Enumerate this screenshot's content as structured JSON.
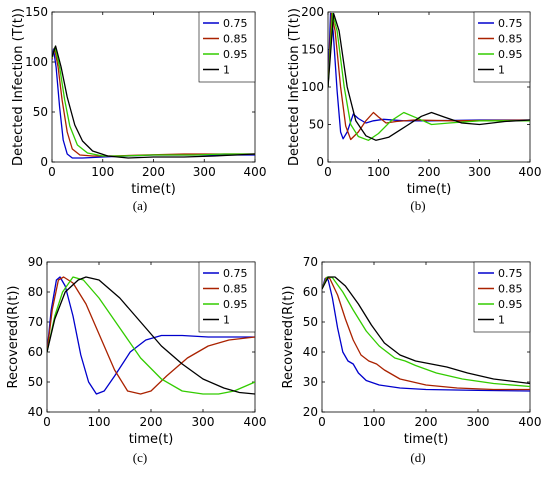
{
  "chart_data": [
    {
      "panel": "(a)",
      "type": "line",
      "xlabel": "time(t)",
      "ylabel": "Detected Infection (T(t))",
      "xlim": [
        0,
        400
      ],
      "ylim": [
        0,
        150
      ],
      "xticks": [
        0,
        100,
        200,
        300,
        400
      ],
      "yticks": [
        0,
        50,
        100,
        150
      ],
      "legend_position": "top-right",
      "series": [
        {
          "name": "0.75",
          "color": "#0000cc",
          "points": [
            [
              0,
              102
            ],
            [
              3,
              113
            ],
            [
              8,
              95
            ],
            [
              15,
              55
            ],
            [
              22,
              22
            ],
            [
              30,
              8
            ],
            [
              40,
              4
            ],
            [
              60,
              4
            ],
            [
              100,
              5
            ],
            [
              150,
              6
            ],
            [
              200,
              7
            ],
            [
              260,
              7
            ],
            [
              330,
              7
            ],
            [
              400,
              7
            ]
          ]
        },
        {
          "name": "0.85",
          "color": "#aa2200",
          "points": [
            [
              0,
              103
            ],
            [
              5,
              114
            ],
            [
              12,
              95
            ],
            [
              20,
              62
            ],
            [
              30,
              30
            ],
            [
              40,
              13
            ],
            [
              55,
              7
            ],
            [
              80,
              6
            ],
            [
              120,
              6
            ],
            [
              180,
              7
            ],
            [
              260,
              8
            ],
            [
              330,
              8
            ],
            [
              400,
              8
            ]
          ]
        },
        {
          "name": "0.95",
          "color": "#33cc00",
          "points": [
            [
              0,
              104
            ],
            [
              6,
              115
            ],
            [
              15,
              95
            ],
            [
              25,
              62
            ],
            [
              35,
              36
            ],
            [
              50,
              17
            ],
            [
              70,
              9
            ],
            [
              100,
              6
            ],
            [
              140,
              6
            ],
            [
              200,
              7
            ],
            [
              280,
              7
            ],
            [
              340,
              8
            ],
            [
              400,
              8
            ]
          ]
        },
        {
          "name": "1",
          "color": "#000000",
          "points": [
            [
              0,
              105
            ],
            [
              7,
              116
            ],
            [
              18,
              95
            ],
            [
              30,
              65
            ],
            [
              45,
              37
            ],
            [
              60,
              21
            ],
            [
              80,
              11
            ],
            [
              110,
              6
            ],
            [
              150,
              4
            ],
            [
              200,
              5
            ],
            [
              260,
              5
            ],
            [
              320,
              6
            ],
            [
              400,
              8
            ]
          ]
        }
      ]
    },
    {
      "panel": "(b)",
      "type": "line",
      "xlabel": "time(t)",
      "ylabel": "Detected Infection (T(t))",
      "xlim": [
        0,
        400
      ],
      "ylim": [
        0,
        200
      ],
      "xticks": [
        0,
        100,
        200,
        300,
        400
      ],
      "yticks": [
        0,
        50,
        100,
        150,
        200
      ],
      "legend_position": "top-right",
      "series": [
        {
          "name": "0.75",
          "color": "#0000cc",
          "points": [
            [
              0,
              100
            ],
            [
              5,
              198
            ],
            [
              10,
              175
            ],
            [
              18,
              95
            ],
            [
              25,
              40
            ],
            [
              30,
              31
            ],
            [
              38,
              40
            ],
            [
              50,
              64
            ],
            [
              60,
              58
            ],
            [
              75,
              52
            ],
            [
              90,
              55
            ],
            [
              110,
              57
            ],
            [
              150,
              55
            ],
            [
              200,
              55
            ],
            [
              300,
              56
            ],
            [
              400,
              56
            ]
          ]
        },
        {
          "name": "0.85",
          "color": "#aa2200",
          "points": [
            [
              0,
              100
            ],
            [
              7,
              198
            ],
            [
              14,
              175
            ],
            [
              25,
              100
            ],
            [
              35,
              48
            ],
            [
              45,
              30
            ],
            [
              60,
              40
            ],
            [
              75,
              55
            ],
            [
              90,
              66
            ],
            [
              100,
              60
            ],
            [
              115,
              52
            ],
            [
              135,
              54
            ],
            [
              170,
              56
            ],
            [
              250,
              55
            ],
            [
              400,
              56
            ]
          ]
        },
        {
          "name": "0.95",
          "color": "#33cc00",
          "points": [
            [
              0,
              100
            ],
            [
              9,
              198
            ],
            [
              18,
              175
            ],
            [
              32,
              100
            ],
            [
              45,
              50
            ],
            [
              60,
              34
            ],
            [
              80,
              29
            ],
            [
              100,
              38
            ],
            [
              125,
              55
            ],
            [
              150,
              66
            ],
            [
              175,
              59
            ],
            [
              205,
              50
            ],
            [
              240,
              52
            ],
            [
              300,
              55
            ],
            [
              400,
              55
            ]
          ]
        },
        {
          "name": "1",
          "color": "#000000",
          "points": [
            [
              0,
              100
            ],
            [
              11,
              198
            ],
            [
              22,
              175
            ],
            [
              38,
              100
            ],
            [
              55,
              55
            ],
            [
              75,
              35
            ],
            [
              95,
              29
            ],
            [
              120,
              33
            ],
            [
              155,
              48
            ],
            [
              185,
              61
            ],
            [
              205,
              66
            ],
            [
              230,
              60
            ],
            [
              265,
              52
            ],
            [
              300,
              50
            ],
            [
              350,
              54
            ],
            [
              400,
              56
            ]
          ]
        }
      ]
    },
    {
      "panel": "(c)",
      "type": "line",
      "xlabel": "time(t)",
      "ylabel": "Recovered(R(t))",
      "xlim": [
        0,
        400
      ],
      "ylim": [
        40,
        90
      ],
      "xticks": [
        0,
        100,
        200,
        300,
        400
      ],
      "yticks": [
        40,
        50,
        60,
        70,
        80,
        90
      ],
      "legend_position": "top-right",
      "series": [
        {
          "name": "0.75",
          "color": "#0000cc",
          "points": [
            [
              0,
              60
            ],
            [
              8,
              74
            ],
            [
              18,
              84
            ],
            [
              25,
              85
            ],
            [
              35,
              82
            ],
            [
              50,
              72
            ],
            [
              65,
              59
            ],
            [
              80,
              50
            ],
            [
              95,
              46
            ],
            [
              110,
              47
            ],
            [
              130,
              52
            ],
            [
              160,
              60
            ],
            [
              190,
              64
            ],
            [
              220,
              65.5
            ],
            [
              260,
              65.5
            ],
            [
              310,
              65
            ],
            [
              400,
              65
            ]
          ]
        },
        {
          "name": "0.85",
          "color": "#aa2200",
          "points": [
            [
              0,
              60
            ],
            [
              10,
              74
            ],
            [
              22,
              84
            ],
            [
              32,
              85
            ],
            [
              50,
              83
            ],
            [
              75,
              76
            ],
            [
              100,
              66
            ],
            [
              130,
              54
            ],
            [
              155,
              47
            ],
            [
              180,
              46
            ],
            [
              200,
              47
            ],
            [
              230,
              52
            ],
            [
              270,
              58
            ],
            [
              310,
              62
            ],
            [
              350,
              64
            ],
            [
              400,
              65
            ]
          ]
        },
        {
          "name": "0.95",
          "color": "#33cc00",
          "points": [
            [
              0,
              60
            ],
            [
              15,
              72
            ],
            [
              30,
              80
            ],
            [
              50,
              85
            ],
            [
              70,
              84
            ],
            [
              100,
              78
            ],
            [
              140,
              68
            ],
            [
              180,
              58
            ],
            [
              220,
              51
            ],
            [
              260,
              47
            ],
            [
              300,
              46
            ],
            [
              330,
              46
            ],
            [
              360,
              47
            ],
            [
              400,
              50
            ]
          ]
        },
        {
          "name": "1",
          "color": "#000000",
          "points": [
            [
              0,
              60
            ],
            [
              15,
              71
            ],
            [
              35,
              80
            ],
            [
              60,
              84
            ],
            [
              75,
              85
            ],
            [
              100,
              84
            ],
            [
              140,
              78
            ],
            [
              180,
              70
            ],
            [
              220,
              62
            ],
            [
              260,
              56
            ],
            [
              300,
              51
            ],
            [
              340,
              48
            ],
            [
              370,
              46.5
            ],
            [
              400,
              46
            ]
          ]
        }
      ]
    },
    {
      "panel": "(d)",
      "type": "line",
      "xlabel": "time(t)",
      "ylabel": "Recovered(R(t))",
      "xlim": [
        0,
        400
      ],
      "ylim": [
        20,
        70
      ],
      "xticks": [
        0,
        100,
        200,
        300,
        400
      ],
      "yticks": [
        20,
        30,
        40,
        50,
        60,
        70
      ],
      "legend_position": "top-right",
      "series": [
        {
          "name": "0.75",
          "color": "#0000cc",
          "points": [
            [
              0,
              61
            ],
            [
              6,
              64.5
            ],
            [
              12,
              64
            ],
            [
              20,
              58
            ],
            [
              30,
              48
            ],
            [
              40,
              40
            ],
            [
              50,
              37
            ],
            [
              60,
              36
            ],
            [
              70,
              33
            ],
            [
              85,
              30.5
            ],
            [
              110,
              29
            ],
            [
              150,
              28
            ],
            [
              200,
              27.5
            ],
            [
              300,
              27.2
            ],
            [
              400,
              27
            ]
          ]
        },
        {
          "name": "0.85",
          "color": "#aa2200",
          "points": [
            [
              0,
              61
            ],
            [
              8,
              64.8
            ],
            [
              15,
              64.5
            ],
            [
              30,
              59
            ],
            [
              45,
              51
            ],
            [
              60,
              44
            ],
            [
              75,
              39
            ],
            [
              90,
              37
            ],
            [
              105,
              36
            ],
            [
              120,
              34
            ],
            [
              150,
              31
            ],
            [
              200,
              29
            ],
            [
              260,
              28
            ],
            [
              330,
              27.5
            ],
            [
              400,
              27.5
            ]
          ]
        },
        {
          "name": "0.95",
          "color": "#33cc00",
          "points": [
            [
              0,
              61
            ],
            [
              10,
              65
            ],
            [
              20,
              64.8
            ],
            [
              40,
              60
            ],
            [
              60,
              54
            ],
            [
              85,
              47
            ],
            [
              110,
              42
            ],
            [
              140,
              38
            ],
            [
              160,
              37
            ],
            [
              180,
              35.5
            ],
            [
              220,
              33
            ],
            [
              270,
              31
            ],
            [
              330,
              29.5
            ],
            [
              400,
              28.5
            ]
          ]
        },
        {
          "name": "1",
          "color": "#000000",
          "points": [
            [
              0,
              61
            ],
            [
              12,
              65
            ],
            [
              25,
              65
            ],
            [
              45,
              62
            ],
            [
              70,
              56
            ],
            [
              95,
              49
            ],
            [
              120,
              43
            ],
            [
              150,
              39
            ],
            [
              180,
              37
            ],
            [
              210,
              36
            ],
            [
              240,
              35
            ],
            [
              280,
              33
            ],
            [
              330,
              31
            ],
            [
              400,
              29.5
            ]
          ]
        }
      ]
    }
  ]
}
